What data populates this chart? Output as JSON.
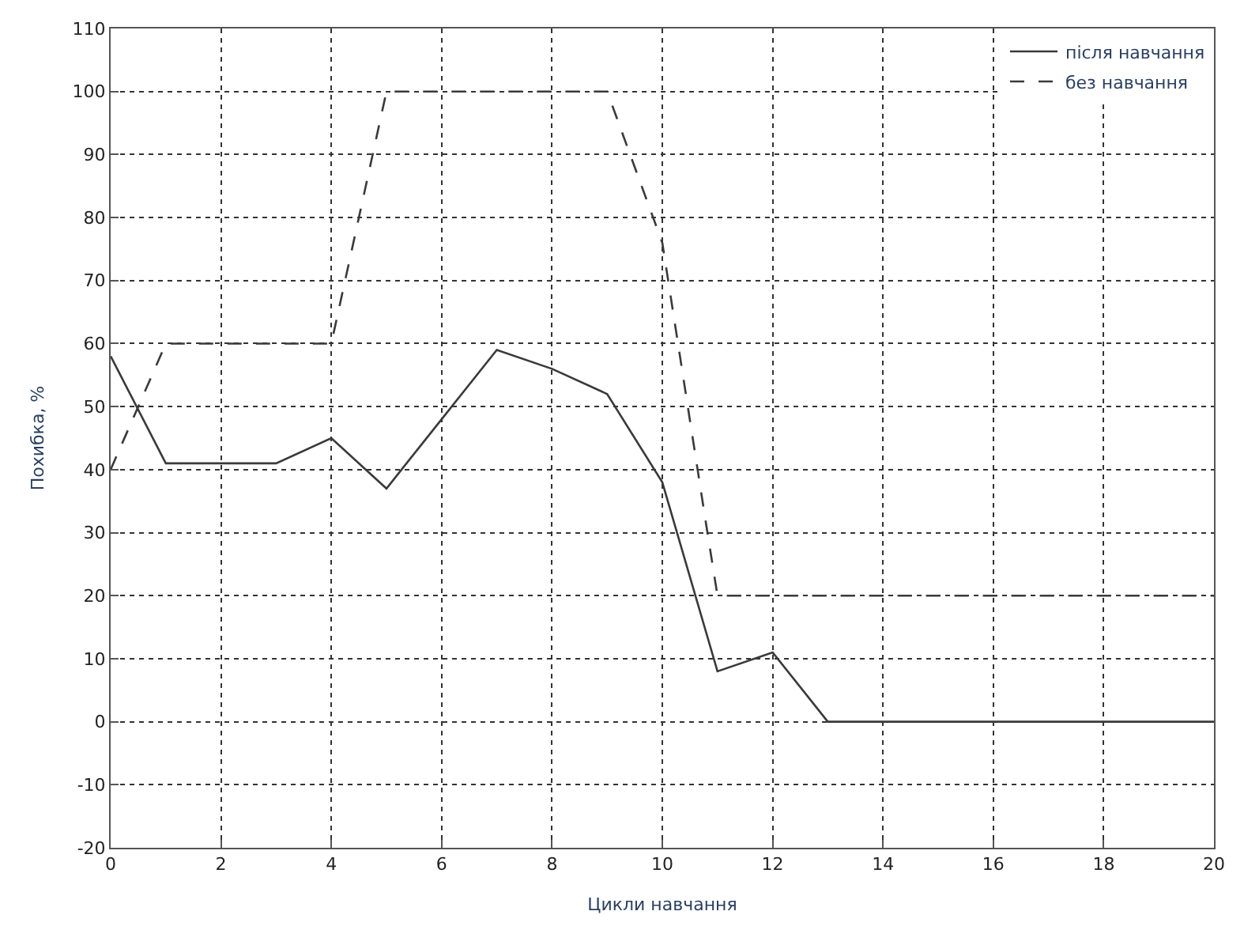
{
  "chart_data": {
    "type": "line",
    "xlabel": "Цикли навчання",
    "ylabel": "Похибка, %",
    "xlim": [
      0,
      20
    ],
    "xticks": [
      0,
      2,
      4,
      6,
      8,
      10,
      12,
      14,
      16,
      18,
      20
    ],
    "ylim": [
      -20,
      110
    ],
    "yticks": [
      -20,
      -10,
      0,
      10,
      20,
      30,
      40,
      50,
      60,
      70,
      80,
      90,
      100,
      110
    ],
    "grid": true,
    "legend": "top right",
    "marker": "none",
    "series": [
      {
        "name": "після навчання",
        "color": "#3a3a3a",
        "line_style": "solid",
        "x": [
          0,
          1,
          2,
          3,
          4,
          5,
          6,
          7,
          8,
          9,
          10,
          11,
          12,
          13,
          14,
          15,
          16,
          17,
          18,
          19,
          20
        ],
        "values": [
          58,
          41,
          41,
          41,
          45,
          37,
          48,
          59,
          56,
          52,
          38,
          8,
          11,
          0,
          0,
          0,
          0,
          0,
          0,
          0,
          0
        ]
      },
      {
        "name": "без навчання",
        "color": "#3a3a3a",
        "line_style": "dashed",
        "x": [
          0,
          1,
          2,
          3,
          4,
          5,
          6,
          7,
          8,
          9,
          10,
          10.8,
          11,
          12,
          13,
          14,
          15,
          16,
          17,
          18,
          19,
          20
        ],
        "values": [
          40,
          60,
          60,
          60,
          60,
          100,
          100,
          100,
          100,
          100,
          76,
          31,
          20,
          20,
          20,
          20,
          20,
          20,
          20,
          20,
          20,
          20
        ]
      }
    ]
  }
}
